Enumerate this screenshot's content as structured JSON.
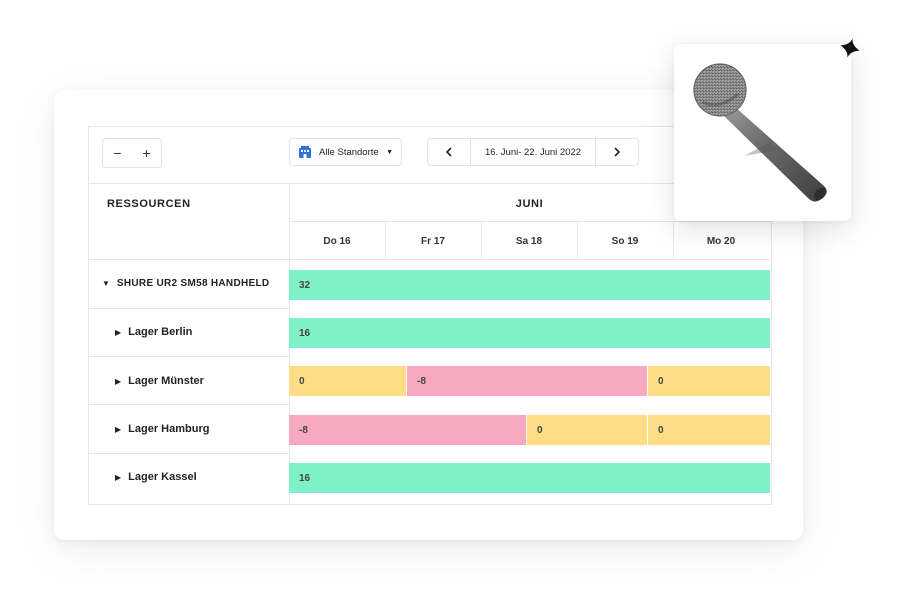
{
  "toolbar": {
    "zoom_out": "−",
    "zoom_in": "+",
    "location_label": "Alle Standorte",
    "date_range": "16. Juni- 22. Juni 2022"
  },
  "header": {
    "resources_title": "RESSOURCEN",
    "month": "JUNI",
    "days": [
      "Do 16",
      "Fr 17",
      "Sa 18",
      "So 19",
      "Mo 20"
    ]
  },
  "rows": [
    {
      "label": "SHURE UR2 SM58 HANDHELD",
      "expanded": true,
      "segments": [
        {
          "value": "32",
          "status": "available",
          "color": "#7ff0c8"
        }
      ]
    },
    {
      "label": "Lager Berlin",
      "segments": [
        {
          "value": "16",
          "status": "available",
          "color": "#7ff0c8"
        }
      ]
    },
    {
      "label": "Lager Münster",
      "segments": [
        {
          "value": "0",
          "status": "booked",
          "color": "#fedd86"
        },
        {
          "value": "-8",
          "status": "overbooked",
          "color": "#f8a9c1"
        },
        {
          "value": "0",
          "status": "booked",
          "color": "#fedd86"
        }
      ]
    },
    {
      "label": "Lager Hamburg",
      "segments": [
        {
          "value": "-8",
          "status": "overbooked",
          "color": "#f8a9c1"
        },
        {
          "value": "0",
          "status": "booked",
          "color": "#fedd86"
        },
        {
          "value": "0",
          "status": "booked",
          "color": "#fedd86"
        }
      ]
    },
    {
      "label": "Lager Kassel",
      "segments": [
        {
          "value": "16",
          "status": "available",
          "color": "#7ff0c8"
        }
      ]
    }
  ],
  "icons": {
    "location": "building-icon",
    "caret": "caret-down-icon",
    "prev": "chevron-left-icon",
    "next": "chevron-right-icon",
    "product": "microphone-image",
    "decoration": "sparkle-icon"
  },
  "colors": {
    "available": "#7ff0c8",
    "booked": "#fedd86",
    "overbooked": "#f8a9c1",
    "location_icon": "#2f6fe0"
  }
}
